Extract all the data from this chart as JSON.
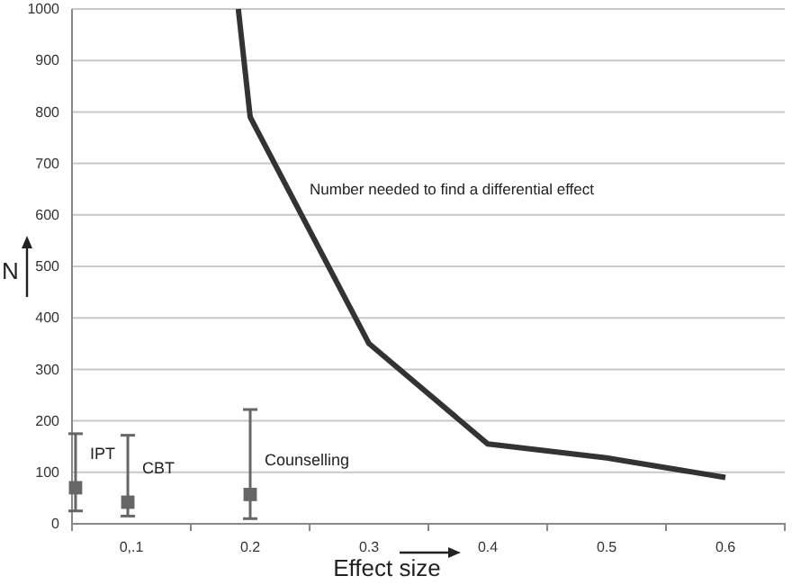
{
  "chart_data": {
    "type": "line",
    "xlabel": "Effect size",
    "ylabel": "N",
    "xlim": [
      0.05,
      0.65
    ],
    "xticks": [
      {
        "value": 0.1,
        "label": "0,.1"
      },
      0.2,
      0.3,
      0.4,
      0.5,
      0.6,
      {
        "value": 0.15,
        "label": null
      },
      {
        "value": 0.25,
        "label": null
      },
      {
        "value": 0.35,
        "label": null
      },
      {
        "value": 0.45,
        "label": null
      },
      {
        "value": 0.55,
        "label": null
      },
      {
        "value": 0.65,
        "label": null
      }
    ],
    "ylim": [
      0,
      1000
    ],
    "yticks": [
      0,
      100,
      200,
      300,
      400,
      500,
      600,
      700,
      800,
      900,
      1000
    ],
    "grid": "y",
    "series": [
      {
        "name": "Number needed to find a differential effect",
        "color": "#333333",
        "marker": "none",
        "line_style": "solid",
        "x": [
          0.19,
          0.2,
          0.3,
          0.4,
          0.5,
          0.6
        ],
        "values": [
          1000,
          790,
          350,
          155,
          128,
          90
        ]
      },
      {
        "name": "IPT",
        "type": "scatter",
        "color": "#666666",
        "marker": "square",
        "x": [
          0.053
        ],
        "values": [
          70
        ],
        "errors": [
          [
            25,
            175
          ]
        ]
      },
      {
        "name": "CBT",
        "type": "scatter",
        "color": "#666666",
        "marker": "square",
        "x": [
          0.097
        ],
        "values": [
          42
        ],
        "errors": [
          [
            15,
            172
          ]
        ]
      },
      {
        "name": "Counselling",
        "type": "scatter",
        "color": "#666666",
        "marker": "square",
        "x": [
          0.2
        ],
        "values": [
          57
        ],
        "errors": [
          [
            10,
            222
          ]
        ]
      }
    ]
  }
}
